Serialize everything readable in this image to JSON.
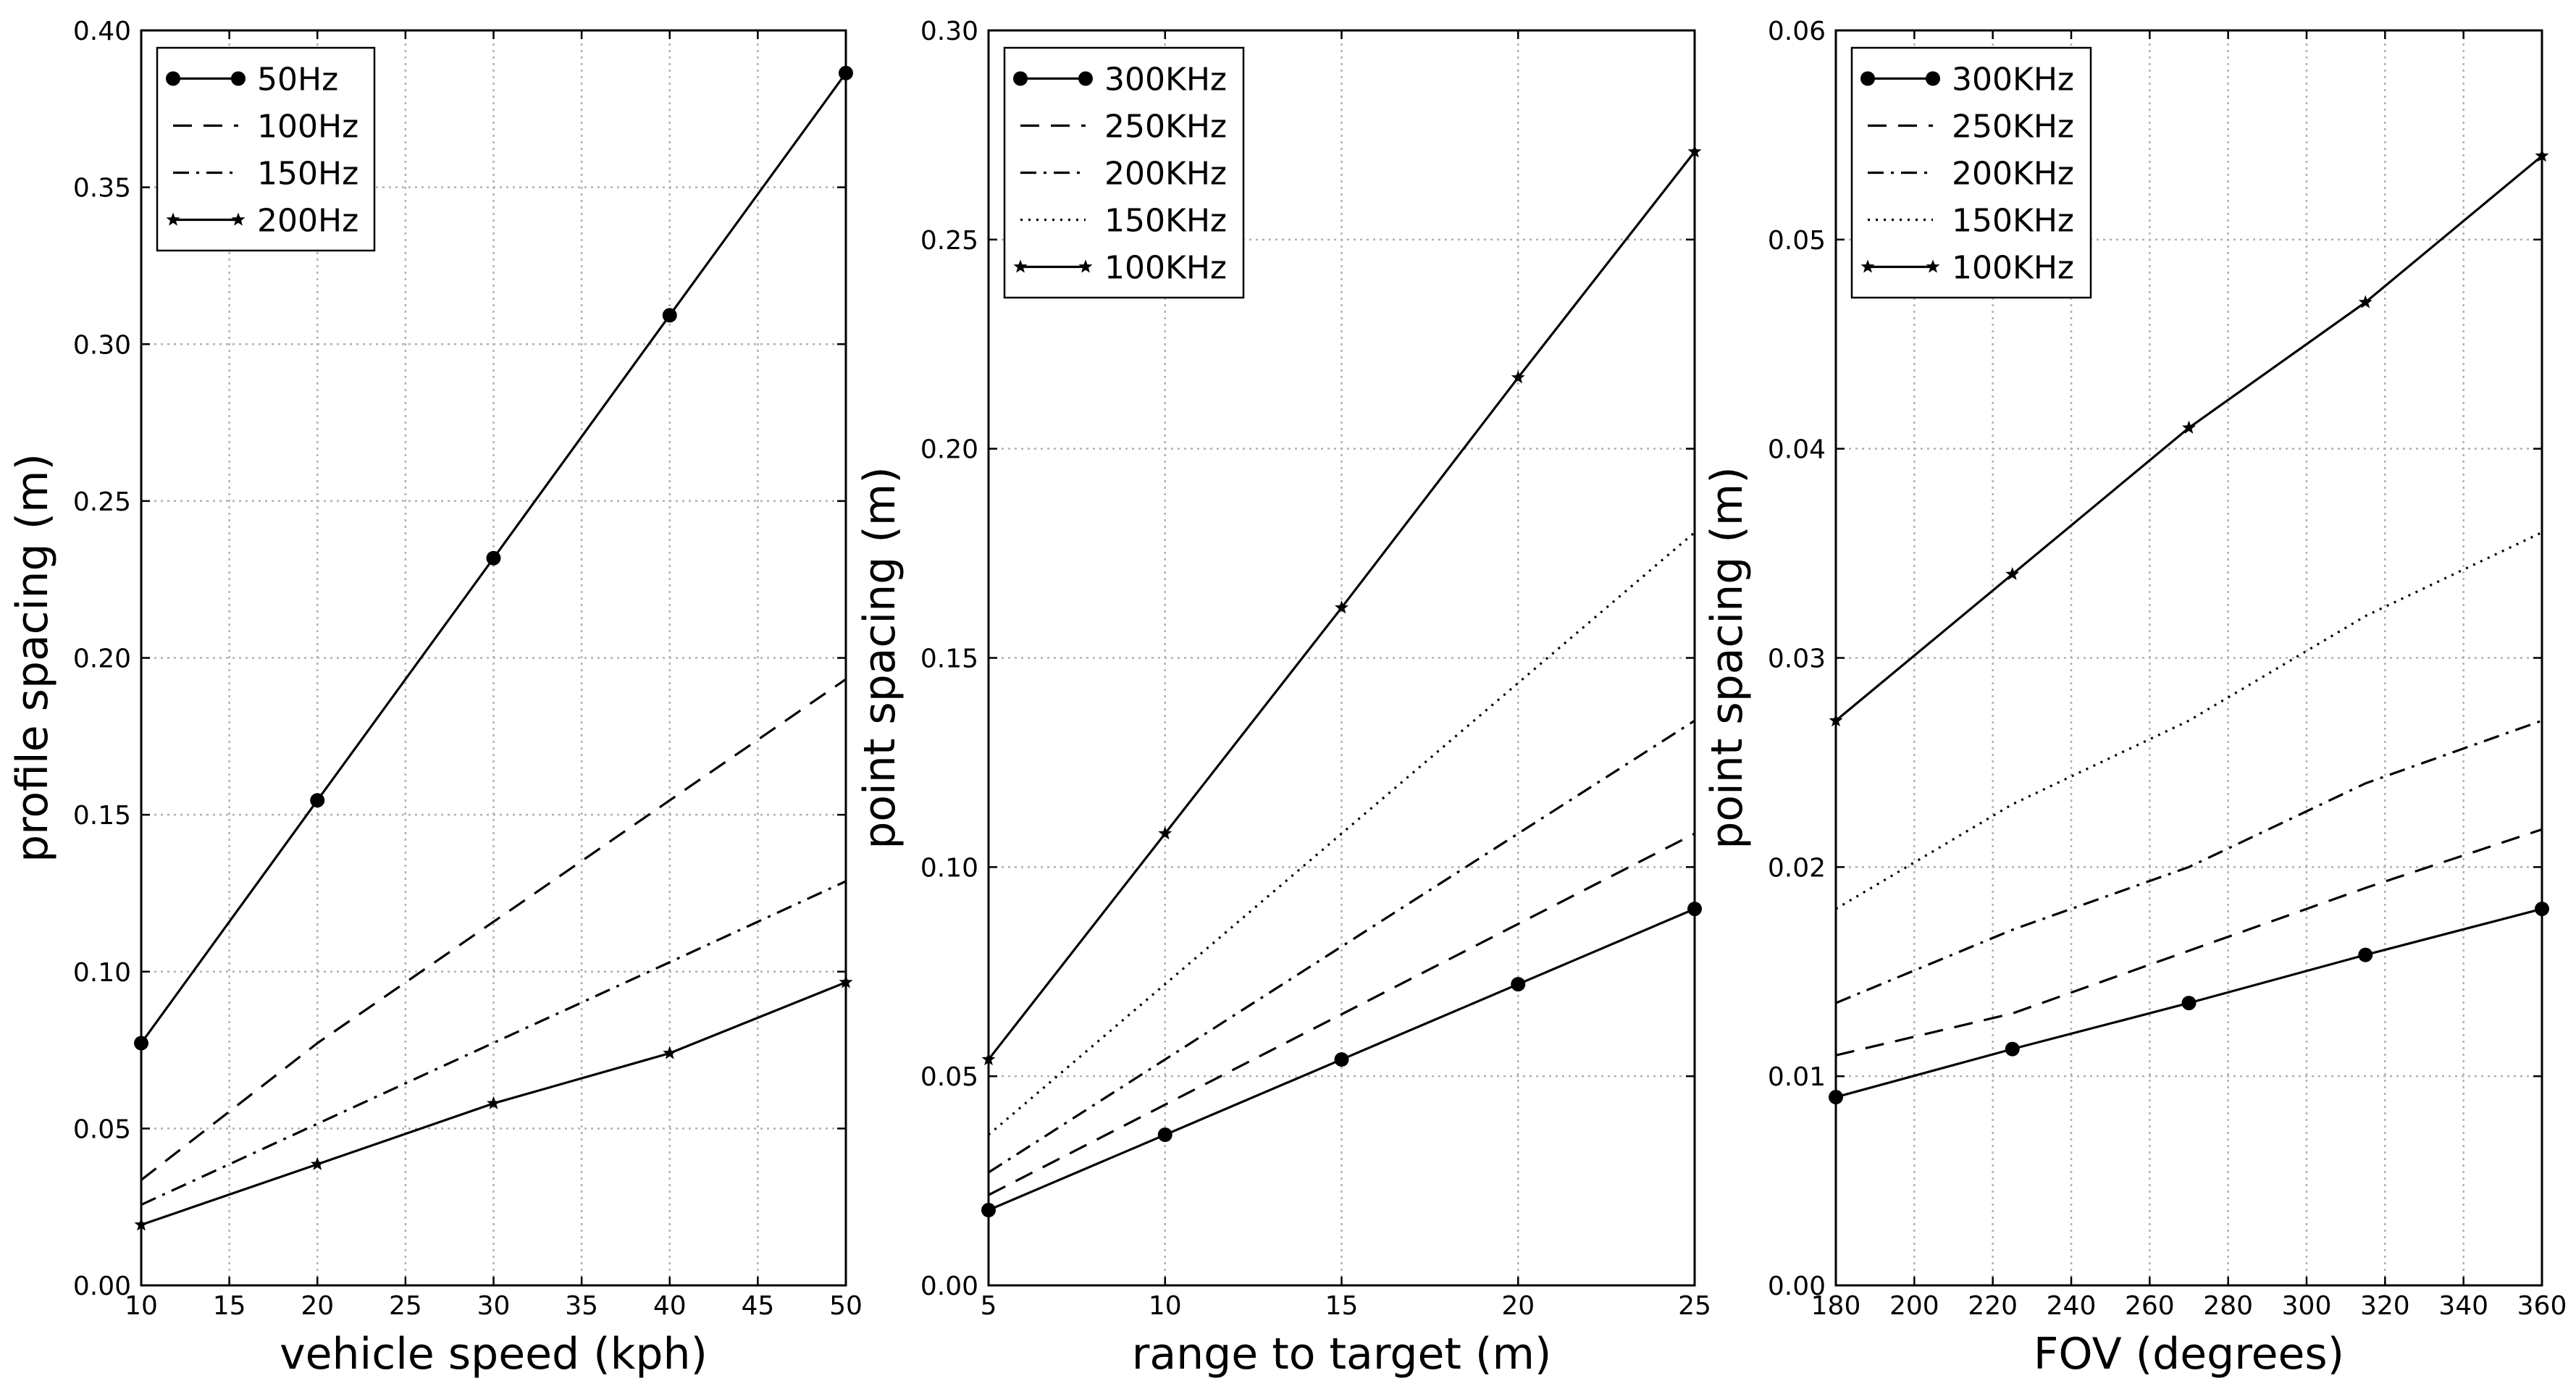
{
  "chart_data": [
    {
      "type": "line",
      "title": "",
      "xlabel": "vehicle speed (kph)",
      "ylabel": "profile spacing (m)",
      "xlim": [
        10,
        50
      ],
      "ylim": [
        0.0,
        0.4
      ],
      "grid": true,
      "legend_position": "top-left",
      "xticks": [
        10,
        15,
        20,
        25,
        30,
        35,
        40,
        45,
        50
      ],
      "xtick_labels": [
        "10",
        "15",
        "20",
        "25",
        "30",
        "35",
        "40",
        "45",
        "50"
      ],
      "yticks": [
        0,
        0.05,
        0.1,
        0.15,
        0.2,
        0.25,
        0.3,
        0.35,
        0.4
      ],
      "ytick_labels": [
        "0.00",
        "0.05",
        "0.10",
        "0.15",
        "0.20",
        "0.25",
        "0.30",
        "0.35",
        "0.40"
      ],
      "series": [
        {
          "name": "50Hz",
          "style": "solid",
          "marker": "circle",
          "x": [
            10,
            20,
            30,
            40,
            50
          ],
          "y": [
            0.0772,
            0.1546,
            0.2318,
            0.3092,
            0.3864
          ]
        },
        {
          "name": "100Hz",
          "style": "dashed",
          "marker": "none",
          "x": [
            10,
            20,
            30,
            40,
            50
          ],
          "y": [
            0.0336,
            0.0772,
            0.1159,
            0.1546,
            0.1932
          ]
        },
        {
          "name": "150Hz",
          "style": "dashdot",
          "marker": "none",
          "x": [
            10,
            20,
            30,
            40,
            50
          ],
          "y": [
            0.0257,
            0.0515,
            0.0773,
            0.103,
            0.1288
          ]
        },
        {
          "name": "200Hz",
          "style": "solid",
          "marker": "star",
          "x": [
            10,
            20,
            30,
            40,
            50
          ],
          "y": [
            0.0193,
            0.0386,
            0.058,
            0.074,
            0.0966
          ]
        }
      ]
    },
    {
      "type": "line",
      "title": "",
      "xlabel": "range to target (m)",
      "ylabel": "point spacing (m)",
      "xlim": [
        5,
        25
      ],
      "ylim": [
        0.0,
        0.3
      ],
      "grid": true,
      "legend_position": "top-left",
      "xticks": [
        5,
        10,
        15,
        20,
        25
      ],
      "xtick_labels": [
        "5",
        "10",
        "15",
        "20",
        "25"
      ],
      "yticks": [
        0,
        0.05,
        0.1,
        0.15,
        0.2,
        0.25,
        0.3
      ],
      "ytick_labels": [
        "0.00",
        "0.05",
        "0.10",
        "0.15",
        "0.20",
        "0.25",
        "0.30"
      ],
      "series": [
        {
          "name": "300KHz",
          "style": "solid",
          "marker": "circle",
          "x": [
            5,
            10,
            15,
            20,
            25
          ],
          "y": [
            0.018,
            0.036,
            0.054,
            0.072,
            0.09
          ]
        },
        {
          "name": "250KHz",
          "style": "dashed",
          "marker": "none",
          "x": [
            5,
            10,
            15,
            20,
            25
          ],
          "y": [
            0.0216,
            0.0432,
            0.0648,
            0.0864,
            0.108
          ]
        },
        {
          "name": "200KHz",
          "style": "dashdot",
          "marker": "none",
          "x": [
            5,
            10,
            15,
            20,
            25
          ],
          "y": [
            0.027,
            0.054,
            0.081,
            0.108,
            0.135
          ]
        },
        {
          "name": "150KHz",
          "style": "dotted",
          "marker": "none",
          "x": [
            5,
            10,
            15,
            20,
            25
          ],
          "y": [
            0.036,
            0.072,
            0.108,
            0.144,
            0.18
          ]
        },
        {
          "name": "100KHz",
          "style": "solid",
          "marker": "star",
          "x": [
            5,
            10,
            15,
            20,
            25
          ],
          "y": [
            0.054,
            0.108,
            0.162,
            0.217,
            0.271
          ]
        }
      ]
    },
    {
      "type": "line",
      "title": "",
      "xlabel": "FOV (degrees)",
      "ylabel": "point spacing (m)",
      "xlim": [
        180,
        360
      ],
      "ylim": [
        0.0,
        0.06
      ],
      "grid": true,
      "legend_position": "top-left",
      "xticks": [
        180,
        200,
        220,
        240,
        260,
        280,
        300,
        320,
        340,
        360
      ],
      "xtick_labels": [
        "180",
        "200",
        "220",
        "240",
        "260",
        "280",
        "300",
        "320",
        "340",
        "360"
      ],
      "yticks": [
        0,
        0.01,
        0.02,
        0.03,
        0.04,
        0.05,
        0.06
      ],
      "ytick_labels": [
        "0.00",
        "0.01",
        "0.02",
        "0.03",
        "0.04",
        "0.05",
        "0.06"
      ],
      "series": [
        {
          "name": "300KHz",
          "style": "solid",
          "marker": "circle",
          "x": [
            180,
            225,
            270,
            315,
            360
          ],
          "y": [
            0.009,
            0.0113,
            0.0135,
            0.0158,
            0.018
          ]
        },
        {
          "name": "250KHz",
          "style": "dashed",
          "marker": "none",
          "x": [
            180,
            225,
            270,
            315,
            360
          ],
          "y": [
            0.011,
            0.013,
            0.016,
            0.019,
            0.0218
          ]
        },
        {
          "name": "200KHz",
          "style": "dashdot",
          "marker": "none",
          "x": [
            180,
            225,
            270,
            315,
            360
          ],
          "y": [
            0.0135,
            0.017,
            0.02,
            0.024,
            0.027
          ]
        },
        {
          "name": "150KHz",
          "style": "dotted",
          "marker": "none",
          "x": [
            180,
            225,
            270,
            315,
            360
          ],
          "y": [
            0.018,
            0.023,
            0.027,
            0.032,
            0.036
          ]
        },
        {
          "name": "100KHz",
          "style": "solid",
          "marker": "star",
          "x": [
            180,
            225,
            270,
            315,
            360
          ],
          "y": [
            0.027,
            0.034,
            0.041,
            0.047,
            0.054
          ]
        }
      ]
    }
  ]
}
